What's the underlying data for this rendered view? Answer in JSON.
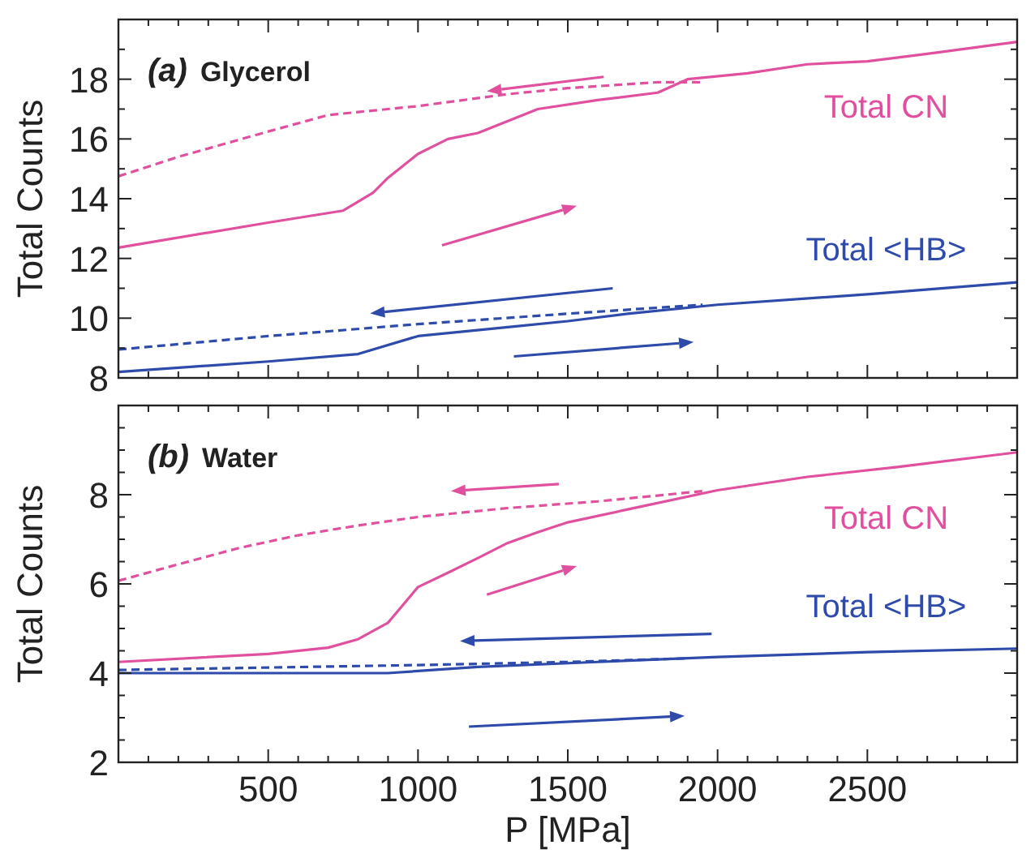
{
  "chart_data": [
    {
      "type": "line",
      "title": "(a) Glycerol",
      "ylabel": "Total Counts",
      "xlim": [
        0,
        3000
      ],
      "ylim": [
        8,
        20
      ],
      "xticks": [
        {
          "value": 0,
          "label": null
        },
        {
          "value": 100,
          "label": null
        },
        {
          "value": 200,
          "label": null
        },
        {
          "value": 300,
          "label": null
        },
        {
          "value": 400,
          "label": null
        },
        {
          "value": 500,
          "label": null
        },
        {
          "value": 600,
          "label": null
        },
        {
          "value": 700,
          "label": null
        },
        {
          "value": 800,
          "label": null
        },
        {
          "value": 900,
          "label": null
        },
        {
          "value": 1000,
          "label": null
        },
        {
          "value": 1100,
          "label": null
        },
        {
          "value": 1200,
          "label": null
        },
        {
          "value": 1300,
          "label": null
        },
        {
          "value": 1400,
          "label": null
        },
        {
          "value": 1500,
          "label": null
        },
        {
          "value": 1600,
          "label": null
        },
        {
          "value": 1700,
          "label": null
        },
        {
          "value": 1800,
          "label": null
        },
        {
          "value": 1900,
          "label": null
        },
        {
          "value": 2000,
          "label": null
        },
        {
          "value": 2100,
          "label": null
        },
        {
          "value": 2200,
          "label": null
        },
        {
          "value": 2300,
          "label": null
        },
        {
          "value": 2400,
          "label": null
        },
        {
          "value": 2500,
          "label": null
        },
        {
          "value": 2600,
          "label": null
        },
        {
          "value": 2700,
          "label": null
        },
        {
          "value": 2800,
          "label": null
        },
        {
          "value": 2900,
          "label": null
        },
        {
          "value": 3000,
          "label": null
        }
      ],
      "yticks": [
        8,
        {
          "value": 9,
          "label": null
        },
        10,
        {
          "value": 11,
          "label": null
        },
        12,
        {
          "value": 13,
          "label": null
        },
        14,
        {
          "value": 15,
          "label": null
        },
        16,
        {
          "value": 17,
          "label": null
        },
        18,
        {
          "value": 19,
          "label": null
        },
        {
          "value": 20,
          "label": null
        }
      ],
      "tick_labels": "y",
      "grid": false,
      "series": [
        {
          "name": "Total CN",
          "color": "#e0509f",
          "line_style": "solid",
          "x": [
            0,
            500,
            750,
            850,
            900,
            1000,
            1100,
            1200,
            1300,
            1400,
            1600,
            1800,
            1900,
            2100,
            2300,
            2500,
            2700,
            3000
          ],
          "values": [
            12.36,
            13.2,
            13.6,
            14.2,
            14.7,
            15.5,
            16.0,
            16.2,
            16.6,
            17.0,
            17.3,
            17.55,
            18.0,
            18.2,
            18.5,
            18.6,
            18.85,
            19.25
          ]
        },
        {
          "color": "#e0509f",
          "line_style": "dashed",
          "x": [
            0,
            200,
            500,
            700,
            1000,
            1300,
            1500,
            1800,
            1950
          ],
          "values": [
            14.75,
            15.4,
            16.25,
            16.8,
            17.1,
            17.5,
            17.7,
            17.9,
            17.9
          ]
        },
        {
          "name": "Total <HB>",
          "color": "#2e4bab",
          "line_style": "solid",
          "x": [
            0,
            500,
            800,
            1000,
            1300,
            1500,
            1700,
            2000,
            2500,
            3000
          ],
          "values": [
            8.2,
            8.55,
            8.8,
            9.4,
            9.7,
            9.9,
            10.15,
            10.45,
            10.8,
            11.2
          ]
        },
        {
          "color": "#2e4bab",
          "line_style": "dashed",
          "x": [
            0,
            500,
            1000,
            1500,
            1800,
            1950
          ],
          "values": [
            8.95,
            9.4,
            9.8,
            10.15,
            10.35,
            10.45
          ]
        }
      ]
    },
    {
      "type": "line",
      "title": "(b) Water",
      "xlabel": "P [MPa]",
      "ylabel": "Total Counts",
      "xlim": [
        0,
        3000
      ],
      "ylim": [
        2,
        10
      ],
      "xticks": [
        {
          "value": 0,
          "label": null
        },
        {
          "value": 100,
          "label": null
        },
        {
          "value": 200,
          "label": null
        },
        {
          "value": 300,
          "label": null
        },
        {
          "value": 400,
          "label": null
        },
        500,
        {
          "value": 600,
          "label": null
        },
        {
          "value": 700,
          "label": null
        },
        {
          "value": 800,
          "label": null
        },
        {
          "value": 900,
          "label": null
        },
        1000,
        {
          "value": 1100,
          "label": null
        },
        {
          "value": 1200,
          "label": null
        },
        {
          "value": 1300,
          "label": null
        },
        {
          "value": 1400,
          "label": null
        },
        1500,
        {
          "value": 1600,
          "label": null
        },
        {
          "value": 1700,
          "label": null
        },
        {
          "value": 1800,
          "label": null
        },
        {
          "value": 1900,
          "label": null
        },
        2000,
        {
          "value": 2100,
          "label": null
        },
        {
          "value": 2200,
          "label": null
        },
        {
          "value": 2300,
          "label": null
        },
        {
          "value": 2400,
          "label": null
        },
        2500,
        {
          "value": 2600,
          "label": null
        },
        {
          "value": 2700,
          "label": null
        },
        {
          "value": 2800,
          "label": null
        },
        {
          "value": 2900,
          "label": null
        },
        {
          "value": 3000,
          "label": null
        }
      ],
      "yticks": [
        2,
        {
          "value": 2.5,
          "label": null
        },
        {
          "value": 3,
          "label": null
        },
        {
          "value": 3.5,
          "label": null
        },
        4,
        {
          "value": 4.5,
          "label": null
        },
        {
          "value": 5,
          "label": null
        },
        {
          "value": 5.5,
          "label": null
        },
        6,
        {
          "value": 6.5,
          "label": null
        },
        {
          "value": 7,
          "label": null
        },
        {
          "value": 7.5,
          "label": null
        },
        8,
        {
          "value": 8.5,
          "label": null
        },
        {
          "value": 9,
          "label": null
        },
        {
          "value": 9.5,
          "label": null
        },
        {
          "value": 10,
          "label": null
        }
      ],
      "grid": false,
      "series": [
        {
          "name": "Total CN",
          "color": "#e0509f",
          "line_style": "solid",
          "x": [
            0,
            500,
            700,
            800,
            900,
            1000,
            1100,
            1200,
            1300,
            1400,
            1500,
            1700,
            2000,
            2300,
            2600,
            3000
          ],
          "values": [
            4.25,
            4.43,
            4.57,
            4.76,
            5.13,
            5.93,
            6.25,
            6.58,
            6.92,
            7.16,
            7.38,
            7.67,
            8.1,
            8.4,
            8.62,
            8.95
          ]
        },
        {
          "color": "#e0509f",
          "line_style": "dashed",
          "x": [
            0,
            200,
            400,
            600,
            800,
            1000,
            1300,
            1600,
            1950
          ],
          "values": [
            6.07,
            6.44,
            6.8,
            7.09,
            7.31,
            7.5,
            7.7,
            7.85,
            8.08
          ]
        },
        {
          "name": "Total <HB>",
          "color": "#2e4bab",
          "line_style": "solid",
          "x": [
            0,
            900,
            1200,
            1600,
            2000,
            2500,
            3000
          ],
          "values": [
            4.0,
            4.0,
            4.14,
            4.25,
            4.36,
            4.47,
            4.55
          ]
        },
        {
          "color": "#2e4bab",
          "line_style": "dashed",
          "x": [
            0,
            1000,
            1500,
            1900
          ],
          "values": [
            4.07,
            4.18,
            4.25,
            4.33
          ]
        }
      ]
    }
  ]
}
